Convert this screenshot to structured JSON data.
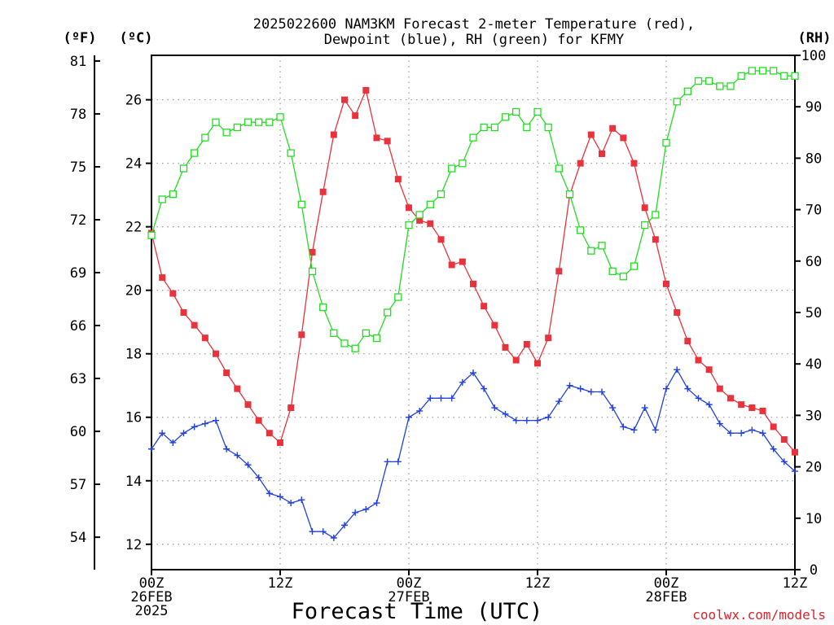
{
  "chart_data": {
    "type": "line",
    "title_line1": "2025022600 NAM3KM Forecast 2-meter Temperature (red),",
    "title_line2": "Dewpoint (blue), RH (green) for KFMY",
    "xlabel": "Forecast Time (UTC)",
    "units": {
      "fahrenheit": "(ºF)",
      "celsius": "(ºC)",
      "rh": "(RH)"
    },
    "credit": "coolwx.com/models",
    "x_hours": [
      0,
      1,
      2,
      3,
      4,
      5,
      6,
      7,
      8,
      9,
      10,
      11,
      12,
      13,
      14,
      15,
      16,
      17,
      18,
      19,
      20,
      21,
      22,
      23,
      24,
      25,
      26,
      27,
      28,
      29,
      30,
      31,
      32,
      33,
      34,
      35,
      36,
      37,
      38,
      39,
      40,
      41,
      42,
      43,
      44,
      45,
      46,
      47,
      48,
      49,
      50,
      51,
      52,
      53,
      54,
      55,
      56,
      57,
      58,
      59,
      60
    ],
    "x_ticks": [
      {
        "hour": 0,
        "label1": "00Z",
        "label2": "26FEB",
        "label3": "2025"
      },
      {
        "hour": 12,
        "label1": "12Z",
        "label2": "",
        "label3": ""
      },
      {
        "hour": 24,
        "label1": "00Z",
        "label2": "27FEB",
        "label3": ""
      },
      {
        "hour": 36,
        "label1": "12Z",
        "label2": "",
        "label3": ""
      },
      {
        "hour": 48,
        "label1": "00Z",
        "label2": "28FEB",
        "label3": ""
      },
      {
        "hour": 60,
        "label1": "12Z",
        "label2": "",
        "label3": ""
      }
    ],
    "celsius_range": [
      11.2,
      27.4
    ],
    "celsius_ticks": [
      "12",
      "14",
      "16",
      "18",
      "20",
      "22",
      "24",
      "26"
    ],
    "fahrenheit_ticks": [
      "54",
      "57",
      "60",
      "63",
      "66",
      "69",
      "72",
      "75",
      "78",
      "81"
    ],
    "rh_range": [
      0,
      100
    ],
    "rh_ticks": [
      "0",
      "10",
      "20",
      "30",
      "40",
      "50",
      "60",
      "70",
      "80",
      "90",
      "100"
    ],
    "grid": true,
    "series": [
      {
        "name": "Temperature",
        "axis": "celsius",
        "color": "#e8323c",
        "marker": "filled-square",
        "values": [
          21.8,
          20.4,
          19.9,
          19.3,
          18.9,
          18.5,
          18.0,
          17.4,
          16.9,
          16.4,
          15.9,
          15.5,
          15.2,
          16.3,
          18.6,
          21.2,
          23.1,
          24.9,
          26.0,
          25.5,
          26.3,
          24.8,
          24.7,
          23.5,
          22.6,
          22.2,
          22.1,
          21.6,
          20.8,
          20.9,
          20.2,
          19.5,
          18.9,
          18.2,
          17.8,
          18.3,
          17.7,
          18.5,
          20.6,
          23.0,
          24.0,
          24.9,
          24.3,
          25.1,
          24.8,
          24.0,
          22.6,
          21.6,
          20.2,
          19.3,
          18.4,
          17.8,
          17.5,
          16.9,
          16.6,
          16.4,
          16.3,
          16.2,
          15.7,
          15.3,
          14.9
        ]
      },
      {
        "name": "Dewpoint",
        "axis": "celsius",
        "color": "#2040e0",
        "marker": "plus",
        "values": [
          15.0,
          15.5,
          15.2,
          15.5,
          15.7,
          15.8,
          15.9,
          15.0,
          14.8,
          14.5,
          14.1,
          13.6,
          13.5,
          13.3,
          13.4,
          12.4,
          12.4,
          12.2,
          12.6,
          13.0,
          13.1,
          13.3,
          14.6,
          14.6,
          16.0,
          16.2,
          16.6,
          16.6,
          16.6,
          17.1,
          17.4,
          16.9,
          16.3,
          16.1,
          15.9,
          15.9,
          15.9,
          16.0,
          16.5,
          17.0,
          16.9,
          16.8,
          16.8,
          16.3,
          15.7,
          15.6,
          16.3,
          15.6,
          16.9,
          17.5,
          16.9,
          16.6,
          16.4,
          15.8,
          15.5,
          15.5,
          15.6,
          15.5,
          15.0,
          14.6,
          14.3
        ]
      },
      {
        "name": "RH",
        "axis": "rh",
        "color": "#22dd22",
        "marker": "open-square",
        "values": [
          65,
          72,
          73,
          78,
          81,
          84,
          87,
          85,
          86,
          87,
          87,
          87,
          88,
          81,
          71,
          58,
          51,
          46,
          44,
          43,
          46,
          45,
          50,
          53,
          67,
          69,
          71,
          73,
          78,
          79,
          84,
          86,
          86,
          88,
          89,
          86,
          89,
          86,
          78,
          73,
          66,
          62,
          63,
          58,
          57,
          59,
          67,
          69,
          83,
          91,
          93,
          95,
          95,
          94,
          94,
          96,
          97,
          97,
          97,
          96,
          96
        ]
      }
    ]
  }
}
